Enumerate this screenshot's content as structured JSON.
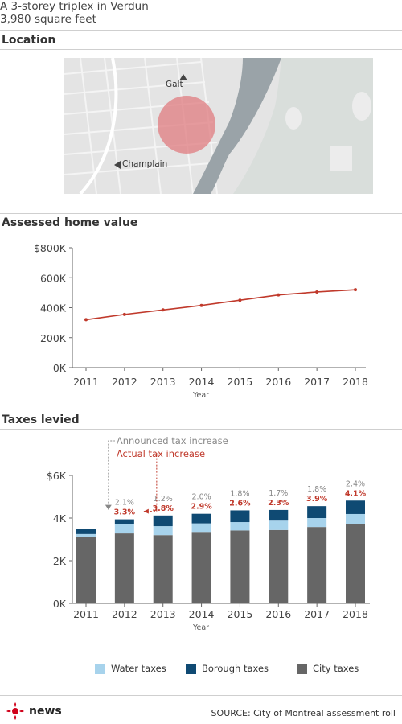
{
  "header": {
    "line1": "A 3-storey triplex in Verdun",
    "line2": "3,980 square feet"
  },
  "location": {
    "title": "Location",
    "label_galt": "Galt",
    "label_champlain": "Champlain"
  },
  "colors": {
    "line": "#c0392b",
    "marker": "#c0392b",
    "water": "#a7d3ec",
    "borough": "#0f4a73",
    "city": "#666666",
    "actual_increase": "#c0392b",
    "announced_increase": "#888888",
    "location_circle": "#e07c80"
  },
  "chart_data": [
    {
      "type": "line",
      "title": "Assessed home value",
      "xlabel": "Year",
      "ylabel": "",
      "x": [
        "2011",
        "2012",
        "2013",
        "2014",
        "2015",
        "2016",
        "2017",
        "2018"
      ],
      "values": [
        320000,
        355000,
        385000,
        415000,
        450000,
        485000,
        505000,
        520000
      ],
      "y_ticks": [
        "$800K",
        "600K",
        "400K",
        "200K",
        "0K"
      ],
      "y_tick_values": [
        800000,
        600000,
        400000,
        200000,
        0
      ],
      "ylim": [
        0,
        800000
      ],
      "grid": false,
      "legend": "none"
    },
    {
      "type": "bar",
      "stacked": true,
      "title": "Taxes levied",
      "xlabel": "Year",
      "ylabel": "",
      "categories": [
        "2011",
        "2012",
        "2013",
        "2014",
        "2015",
        "2016",
        "2017",
        "2018"
      ],
      "series": [
        {
          "name": "City taxes",
          "values": [
            3100,
            3280,
            3200,
            3350,
            3420,
            3440,
            3580,
            3720
          ]
        },
        {
          "name": "Water taxes",
          "values": [
            150,
            430,
            420,
            400,
            390,
            440,
            420,
            470
          ]
        },
        {
          "name": "Borough taxes",
          "values": [
            240,
            230,
            500,
            450,
            550,
            500,
            560,
            630
          ]
        }
      ],
      "y_ticks": [
        "$6K",
        "4K",
        "2K",
        "0K"
      ],
      "y_tick_values": [
        6000,
        4000,
        2000,
        0
      ],
      "ylim": [
        0,
        6000
      ],
      "announced_increase": [
        "",
        "2.1%",
        "1.2%",
        "2.0%",
        "1.8%",
        "1.7%",
        "1.8%",
        "2.4%"
      ],
      "actual_increase": [
        "",
        "3.3%",
        "3.8%",
        "2.9%",
        "2.6%",
        "2.3%",
        "3.9%",
        "4.1%"
      ],
      "annotation_announced": "Announced tax increase",
      "annotation_actual": "Actual tax increase",
      "legend": "bottom",
      "legend_entries": [
        "Water taxes",
        "Borough taxes",
        "City taxes"
      ]
    }
  ],
  "footer": {
    "logo_text": "news",
    "source": "SOURCE: City of Montreal assessment roll"
  }
}
